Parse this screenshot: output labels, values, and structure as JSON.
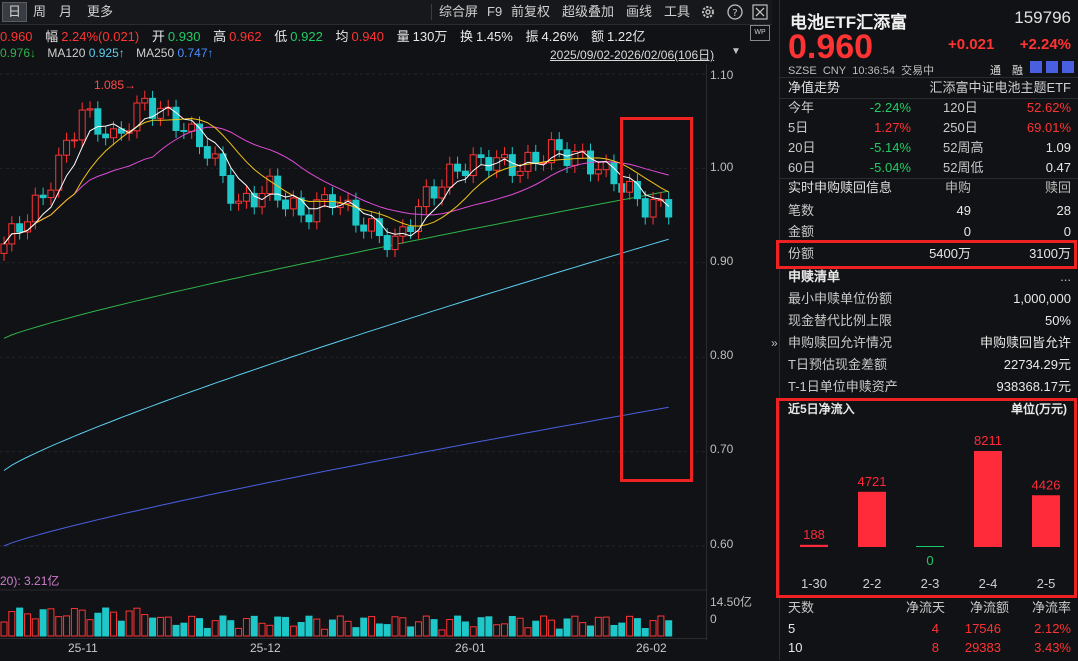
{
  "toolbar": {
    "tabs": [
      "日",
      "周",
      "月",
      "更多"
    ],
    "actions": [
      "综合屏",
      "F9",
      "前复权",
      "超级叠加",
      "画线",
      "工具"
    ]
  },
  "quote": {
    "price": "0.960",
    "change_pct_label": "幅",
    "change_pct": "2.24%(0.021)",
    "open_label": "开",
    "open": "0.930",
    "high_label": "高",
    "high": "0.962",
    "low_label": "低",
    "low": "0.922",
    "avg_label": "均",
    "avg": "0.940",
    "vol_label": "量",
    "vol": "130万",
    "turnover_label": "换",
    "turnover": "1.45%",
    "amp_label": "振",
    "amp": "4.26%",
    "amount_label": "额",
    "amount": "1.22亿"
  },
  "ma": {
    "ma60_val": "0.976",
    "ma120_label": "MA120",
    "ma120": "0.925",
    "ma250_label": "MA250",
    "ma250": "0.747",
    "range": "2025/09/02-2026/02/06(106日)"
  },
  "chart": {
    "y_ticks": [
      "1.10",
      "1.00",
      "0.90",
      "0.80",
      "0.70",
      "0.60"
    ],
    "max_marker": "1.085",
    "vol_label": "20): 3.21亿",
    "vol_ticks": [
      "14.50亿",
      "0"
    ],
    "x_ticks": [
      "25-11",
      "25-12",
      "26-01",
      "26-02"
    ],
    "colors": {
      "up": "#ff3333",
      "down": "#1ec8c8",
      "ma5": "#ffffff",
      "ma10": "#f0c419",
      "ma20": "#e04bd8",
      "ma60": "#2fb34a",
      "ma120": "#5bd0f0",
      "ma250": "#4a5fe0"
    }
  },
  "header": {
    "name": "电池ETF汇添富",
    "code": "159796",
    "price": "0.960",
    "change": "+0.021",
    "change_pct": "+2.24%",
    "exchange": "SZSE",
    "currency": "CNY",
    "time": "10:36:54",
    "status": "交易中",
    "tag1": "通",
    "tag2": "融"
  },
  "nav": {
    "title": "净值走势",
    "fund_name": "汇添富中证电池主题ETF",
    "rows": [
      {
        "l1": "今年",
        "v1": "-2.24%",
        "l2": "120日",
        "v2": "52.62%"
      },
      {
        "l1": "5日",
        "v1": "1.27%",
        "l2": "250日",
        "v2": "69.01%"
      },
      {
        "l1": "20日",
        "v1": "-5.14%",
        "l2": "52周高",
        "v2": "1.09"
      },
      {
        "l1": "60日",
        "v1": "-5.04%",
        "l2": "52周低",
        "v2": "0.47"
      }
    ]
  },
  "creation": {
    "title": "实时申购赎回信息",
    "col_sub": "申购",
    "col_red": "赎回",
    "rows": [
      {
        "label": "笔数",
        "sub": "49",
        "red": "28"
      },
      {
        "label": "金额",
        "sub": "0",
        "red": "0"
      },
      {
        "label": "份额",
        "sub": "5400万",
        "red": "3100万"
      }
    ]
  },
  "list": {
    "title": "申赎清单",
    "more": "...",
    "rows": [
      {
        "label": "最小申赎单位份额",
        "value": "1,000,000"
      },
      {
        "label": "现金替代比例上限",
        "value": "50%"
      },
      {
        "label": "申购赎回允许情况",
        "value": "申购赎回皆允许"
      },
      {
        "label": "T日预估现金差额",
        "value": "22734.29元"
      },
      {
        "label": "T-1日单位申赎资产",
        "value": "938368.17元"
      }
    ]
  },
  "flow": {
    "title": "近5日净流入",
    "unit": "单位(万元)"
  },
  "chart_data": {
    "type": "bar",
    "title": "近5日净流入",
    "ylabel": "单位(万元)",
    "categories": [
      "1-30",
      "2-2",
      "2-3",
      "2-4",
      "2-5"
    ],
    "values": [
      188,
      4721,
      0,
      8211,
      4426
    ],
    "color": "#ff2a3a"
  },
  "stats": {
    "headers": [
      "天数",
      "净流天",
      "净流额",
      "净流率"
    ],
    "rows": [
      {
        "days": "5",
        "net_days": "4",
        "net_amount": "17546",
        "net_rate": "2.12%"
      },
      {
        "days": "10",
        "net_days": "8",
        "net_amount": "29383",
        "net_rate": "3.43%"
      }
    ]
  }
}
